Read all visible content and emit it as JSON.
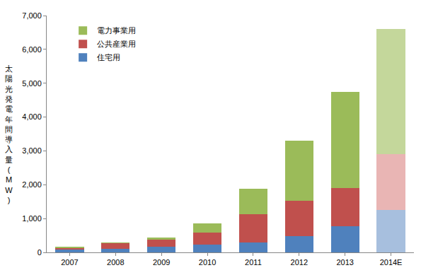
{
  "chart_data": {
    "type": "bar",
    "stacked": true,
    "y_label": "太陽光発電年間導入量(MW)",
    "categories": [
      "2007",
      "2008",
      "2009",
      "2010",
      "2011",
      "2012",
      "2013",
      "2014E"
    ],
    "series": [
      {
        "name": "住宅用",
        "colors": [
          "#4f81bd",
          "#4f81bd",
          "#4f81bd",
          "#4f81bd",
          "#4f81bd",
          "#4f81bd",
          "#4f81bd",
          "#a7bfde"
        ],
        "values": [
          90,
          100,
          160,
          240,
          300,
          480,
          780,
          1260
        ]
      },
      {
        "name": "公共産業用",
        "colors": [
          "#c0504d",
          "#c0504d",
          "#c0504d",
          "#c0504d",
          "#c0504d",
          "#c0504d",
          "#c0504d",
          "#e9b5b4"
        ],
        "values": [
          55,
          180,
          220,
          350,
          830,
          1050,
          1130,
          1640
        ]
      },
      {
        "name": "電力事業用",
        "colors": [
          "#9bbb59",
          "#9bbb59",
          "#9bbb59",
          "#9bbb59",
          "#9bbb59",
          "#9bbb59",
          "#9bbb59",
          "#c4d79b"
        ],
        "values": [
          10,
          10,
          50,
          260,
          750,
          1770,
          2840,
          3700
        ]
      }
    ],
    "ylim": [
      0,
      7000
    ],
    "yticks": [
      0,
      {
        "value": 1000,
        "label": "1,000"
      },
      {
        "value": 2000,
        "label": "2,000"
      },
      {
        "value": 3000,
        "label": "3,000"
      },
      {
        "value": 4000,
        "label": "4,000"
      },
      {
        "value": 5000,
        "label": "5,000"
      },
      {
        "value": 6000,
        "label": "6,000"
      },
      {
        "value": 7000,
        "label": "7,000"
      }
    ],
    "grid": false,
    "legend": "upper left"
  }
}
